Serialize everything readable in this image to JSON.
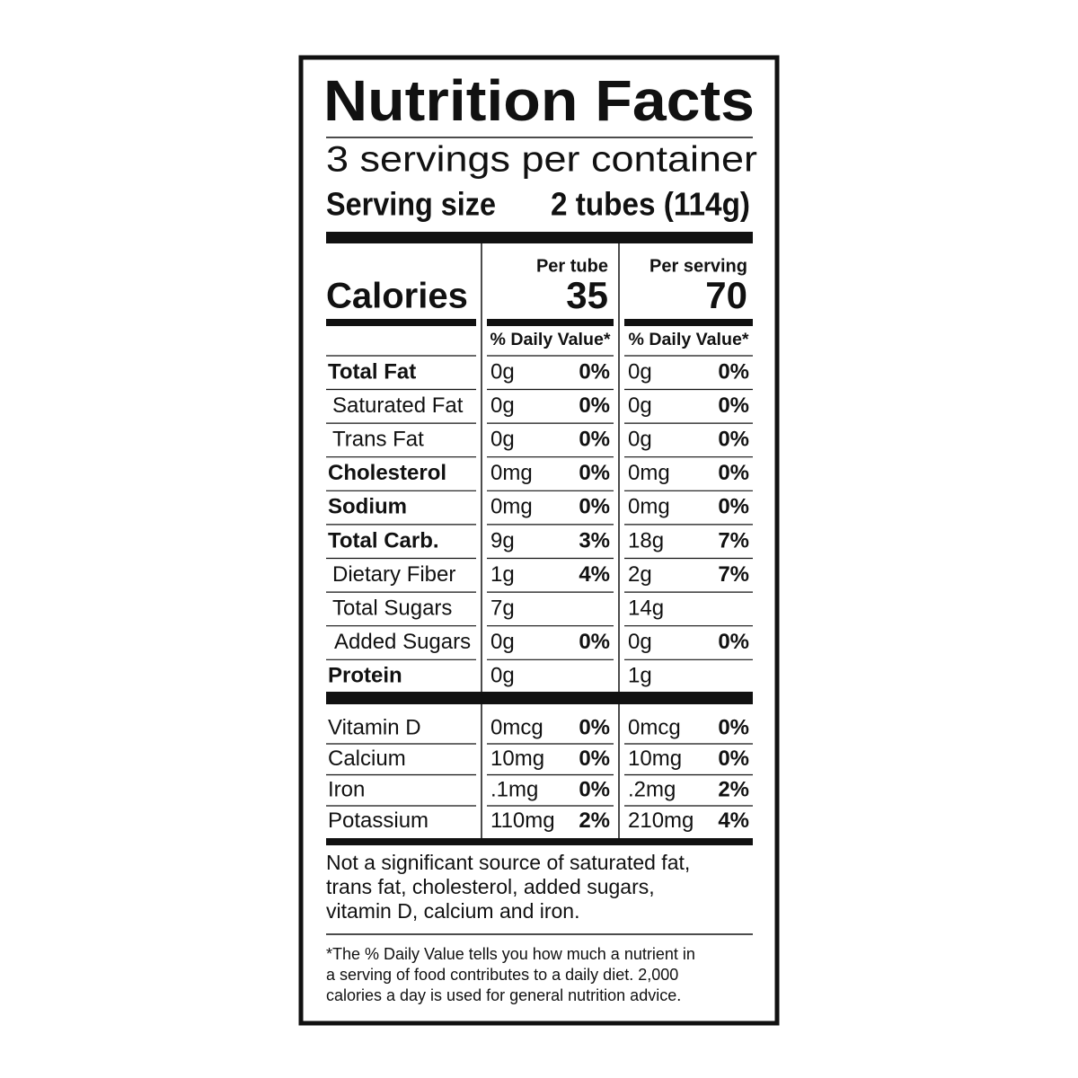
{
  "title": "Nutrition Facts",
  "servings": "3 servings per container",
  "serving_size": {
    "label": "Serving size",
    "value": "2 tubes (114g)"
  },
  "calories": {
    "label": "Calories",
    "columns": [
      {
        "header": "Per tube",
        "value": "35",
        "dv_header": "% Daily Value*"
      },
      {
        "header": "Per serving",
        "value": "70",
        "dv_header": "% Daily Value*"
      }
    ]
  },
  "nutrients": [
    {
      "name": "Total Fat",
      "values": [
        [
          "0g",
          "0%"
        ],
        [
          "0g",
          "0%"
        ]
      ]
    },
    {
      "name": "Saturated Fat",
      "values": [
        [
          "0g",
          "0%"
        ],
        [
          "0g",
          "0%"
        ]
      ]
    },
    {
      "name": "Trans Fat",
      "values": [
        [
          "0g",
          "0%"
        ],
        [
          "0g",
          "0%"
        ]
      ]
    },
    {
      "name": "Cholesterol",
      "values": [
        [
          "0mg",
          "0%"
        ],
        [
          "0mg",
          "0%"
        ]
      ]
    },
    {
      "name": "Sodium",
      "values": [
        [
          "0mg",
          "0%"
        ],
        [
          "0mg",
          "0%"
        ]
      ]
    },
    {
      "name": "Total Carb.",
      "values": [
        [
          "9g",
          "3%"
        ],
        [
          "18g",
          "7%"
        ]
      ]
    },
    {
      "name": "Dietary Fiber",
      "values": [
        [
          "1g",
          "4%"
        ],
        [
          "2g",
          "7%"
        ]
      ]
    },
    {
      "name": "Total Sugars",
      "values": [
        [
          "7g"
        ],
        [
          "14g"
        ]
      ]
    },
    {
      "name": "Added Sugars",
      "values": [
        [
          "0g",
          "0%"
        ],
        [
          "0g",
          "0%"
        ]
      ]
    },
    {
      "name": "Protein",
      "values": [
        [
          "0g"
        ],
        [
          "1g"
        ]
      ]
    }
  ],
  "vitamins": [
    {
      "name": "Vitamin D",
      "values": [
        [
          "0mcg",
          "0%"
        ],
        [
          "0mcg",
          "0%"
        ]
      ]
    },
    {
      "name": "Calcium",
      "values": [
        [
          "10mg",
          "0%"
        ],
        [
          "10mg",
          "0%"
        ]
      ]
    },
    {
      "name": "Iron",
      "values": [
        [
          ".1mg",
          "0%"
        ],
        [
          ".2mg",
          "2%"
        ]
      ]
    },
    {
      "name": "Potassium",
      "values": [
        [
          "110mg",
          "2%"
        ],
        [
          "210mg",
          "4%"
        ]
      ]
    }
  ],
  "note": [
    "Not a significant source of saturated fat,",
    "trans fat, cholesterol, added sugars,",
    "vitamin D, calcium and iron."
  ],
  "footnote": [
    "*The % Daily Value tells you how much a nutrient in",
    "a serving of food contributes to a daily diet. 2,000",
    "calories a day is used for general nutrition advice."
  ]
}
